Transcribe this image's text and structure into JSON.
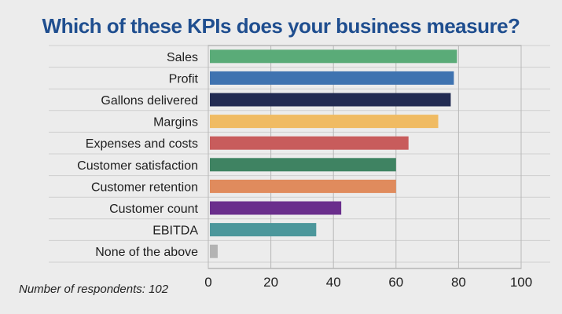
{
  "chart_data": {
    "type": "bar",
    "orientation": "horizontal",
    "title": "Which of these KPIs does your business measure?",
    "categories": [
      "Sales",
      "Profit",
      "Gallons delivered",
      "Margins",
      "Expenses and costs",
      "Customer satisfaction",
      "Customer retention",
      "Customer count",
      "EBITDA",
      "None of the above"
    ],
    "values": [
      79.5,
      78.5,
      77.5,
      73.5,
      64,
      60,
      60,
      42.5,
      34.5,
      3
    ],
    "colors": [
      "#5aab78",
      "#3f73b0",
      "#222b52",
      "#f0bb63",
      "#c85c5c",
      "#3f8362",
      "#e08b5d",
      "#6a2e8c",
      "#4c979b",
      "#b3b3b3"
    ],
    "xlim": [
      0,
      100
    ],
    "xticks": [
      "0",
      "20",
      "40",
      "60",
      "80",
      "100"
    ],
    "grid": true,
    "xlabel": "",
    "ylabel": ""
  },
  "footnote": "Number of respondents: 102"
}
